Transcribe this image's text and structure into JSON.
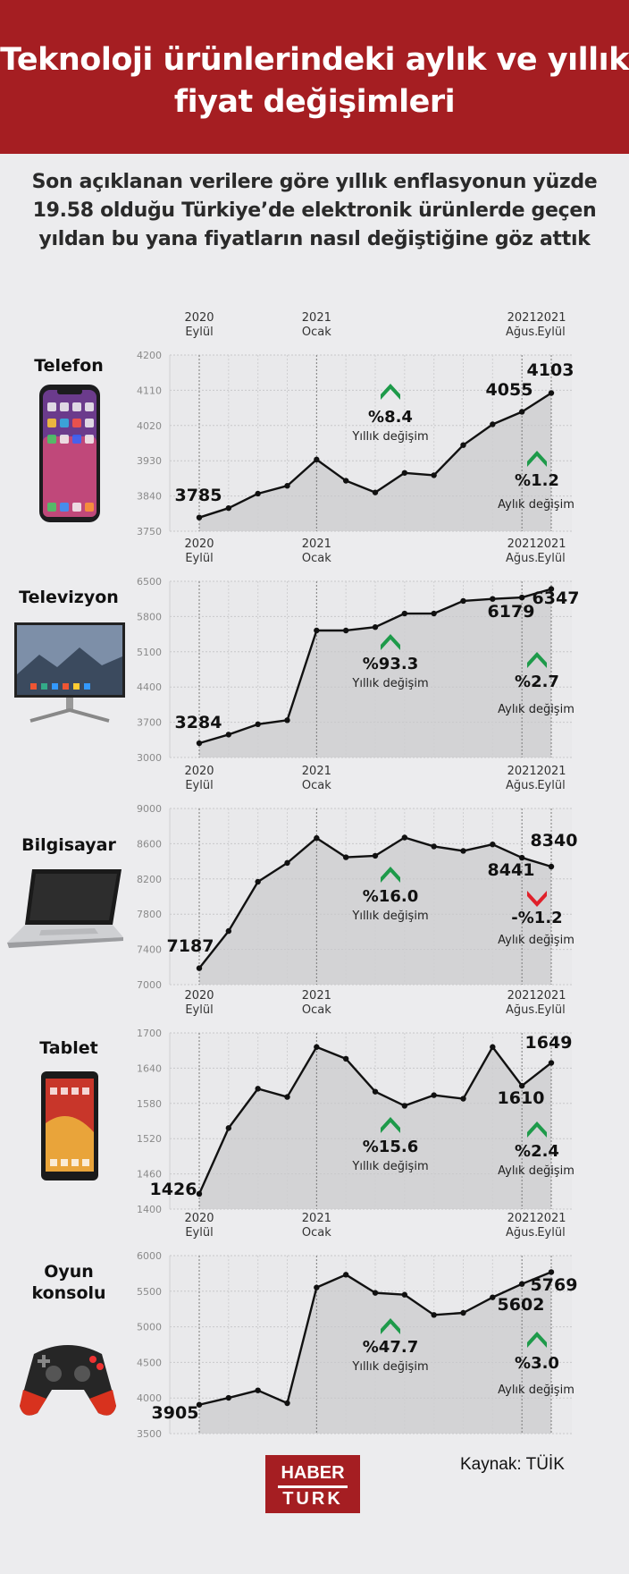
{
  "header": {
    "title": "Teknoloji ürünlerindeki aylık ve yıllık fiyat değişimleri"
  },
  "subtitle": "Son açıklanan verilere göre yıllık enflasyonun yüzde 19.58 olduğu Türkiye’de elektronik ürünlerde geçen yıldan bu yana fiyatların nasıl değiştiğine göz attık",
  "footer": {
    "logo_line1": "HABER",
    "logo_line2": "TURK",
    "source": "Kaynak: TÜİK"
  },
  "colors": {
    "header_red": "#a51e22",
    "up_green": "#1e9a4a",
    "down_red": "#e0202a",
    "area_fill": "#d3d3d5",
    "background": "#ececee"
  },
  "chart_data": [
    {
      "type": "area",
      "category": "Telefon",
      "x_tick_labels": [
        {
          "year": "2020",
          "month": "Eylül"
        },
        {
          "year": "2021",
          "month": "Ocak"
        },
        {
          "year": "2021",
          "month": "Ağus."
        },
        {
          "year": "2021",
          "month": "Eylül"
        }
      ],
      "x": [
        "2020-09",
        "2020-10",
        "2020-11",
        "2020-12",
        "2021-01",
        "2021-02",
        "2021-03",
        "2021-04",
        "2021-05",
        "2021-06",
        "2021-07",
        "2021-08",
        "2021-09"
      ],
      "values": [
        3785,
        3809,
        3846,
        3866,
        3933,
        3879,
        3849,
        3899,
        3893,
        3970,
        4023,
        4055,
        4103
      ],
      "data_labels": [
        {
          "index": 0,
          "text": "3785"
        },
        {
          "index": 11,
          "text": "4055"
        },
        {
          "index": 12,
          "text": "4103"
        }
      ],
      "yticks": [
        3750,
        3840,
        3930,
        4020,
        4110,
        4200
      ],
      "ylim": [
        3750,
        4200
      ],
      "grid": true,
      "annual_change": {
        "value": "%8.4",
        "label": "Yıllık değişim",
        "direction": "up"
      },
      "monthly_change": {
        "value": "%1.2",
        "label": "Aylık değişim",
        "direction": "up"
      }
    },
    {
      "type": "area",
      "category": "Televizyon",
      "x_tick_labels": [
        {
          "year": "2020",
          "month": "Eylül"
        },
        {
          "year": "2021",
          "month": "Ocak"
        },
        {
          "year": "2021",
          "month": "Ağus."
        },
        {
          "year": "2021",
          "month": "Eylül"
        }
      ],
      "x": [
        "2020-09",
        "2020-10",
        "2020-11",
        "2020-12",
        "2021-01",
        "2021-02",
        "2021-03",
        "2021-04",
        "2021-05",
        "2021-06",
        "2021-07",
        "2021-08",
        "2021-09"
      ],
      "values": [
        3284,
        3455,
        3660,
        3740,
        5523,
        5523,
        5590,
        5860,
        5860,
        6110,
        6150,
        6179,
        6347
      ],
      "data_labels": [
        {
          "index": 0,
          "text": "3284"
        },
        {
          "index": 11,
          "text": "6179"
        },
        {
          "index": 12,
          "text": "6347"
        }
      ],
      "yticks": [
        3000,
        3700,
        4400,
        5100,
        5800,
        6500
      ],
      "ylim": [
        3000,
        6500
      ],
      "grid": true,
      "annual_change": {
        "value": "%93.3",
        "label": "Yıllık değişim",
        "direction": "up"
      },
      "monthly_change": {
        "value": "%2.7",
        "label": "Aylık değişim",
        "direction": "up"
      }
    },
    {
      "type": "area",
      "category": "Bilgisayar",
      "x_tick_labels": [
        {
          "year": "2020",
          "month": "Eylül"
        },
        {
          "year": "2021",
          "month": "Ocak"
        },
        {
          "year": "2021",
          "month": "Ağus."
        },
        {
          "year": "2021",
          "month": "Eylül"
        }
      ],
      "x": [
        "2020-09",
        "2020-10",
        "2020-11",
        "2020-12",
        "2021-01",
        "2021-02",
        "2021-03",
        "2021-04",
        "2021-05",
        "2021-06",
        "2021-07",
        "2021-08",
        "2021-09"
      ],
      "values": [
        7187,
        7608,
        8168,
        8382,
        8664,
        8446,
        8463,
        8670,
        8569,
        8518,
        8592,
        8441,
        8340
      ],
      "data_labels": [
        {
          "index": 0,
          "text": "7187"
        },
        {
          "index": 11,
          "text": "8441"
        },
        {
          "index": 12,
          "text": "8340"
        }
      ],
      "yticks": [
        7000,
        7400,
        7800,
        8200,
        8600,
        9000
      ],
      "ylim": [
        7000,
        9000
      ],
      "grid": true,
      "annual_change": {
        "value": "%16.0",
        "label": "Yıllık değişim",
        "direction": "up"
      },
      "monthly_change": {
        "value": "-%1.2",
        "label": "Aylık değişim",
        "direction": "down"
      }
    },
    {
      "type": "area",
      "category": "Tablet",
      "x_tick_labels": [
        {
          "year": "2020",
          "month": "Eylül"
        },
        {
          "year": "2021",
          "month": "Ocak"
        },
        {
          "year": "2021",
          "month": "Ağus."
        },
        {
          "year": "2021",
          "month": "Eylül"
        }
      ],
      "x": [
        "2020-09",
        "2020-10",
        "2020-11",
        "2020-12",
        "2021-01",
        "2021-02",
        "2021-03",
        "2021-04",
        "2021-05",
        "2021-06",
        "2021-07",
        "2021-08",
        "2021-09"
      ],
      "values": [
        1426,
        1538,
        1605,
        1591,
        1676,
        1656,
        1600,
        1576,
        1594,
        1588,
        1676,
        1610,
        1649
      ],
      "data_labels": [
        {
          "index": 0,
          "text": "1426"
        },
        {
          "index": 11,
          "text": "1610"
        },
        {
          "index": 12,
          "text": "1649"
        }
      ],
      "yticks": [
        1400,
        1460,
        1520,
        1580,
        1640,
        1700
      ],
      "ylim": [
        1400,
        1700
      ],
      "grid": true,
      "annual_change": {
        "value": "%15.6",
        "label": "Yıllık değişim",
        "direction": "up"
      },
      "monthly_change": {
        "value": "%2.4",
        "label": "Aylık değişim",
        "direction": "up"
      }
    },
    {
      "type": "area",
      "category": "Oyun konsolu",
      "x_tick_labels": [
        {
          "year": "2020",
          "month": "Eylül"
        },
        {
          "year": "2021",
          "month": "Ocak"
        },
        {
          "year": "2021",
          "month": "Ağus."
        },
        {
          "year": "2021",
          "month": "Eylül"
        }
      ],
      "x": [
        "2020-09",
        "2020-10",
        "2020-11",
        "2020-12",
        "2021-01",
        "2021-02",
        "2021-03",
        "2021-04",
        "2021-05",
        "2021-06",
        "2021-07",
        "2021-08",
        "2021-09"
      ],
      "values": [
        3905,
        4002,
        4107,
        3927,
        5552,
        5732,
        5477,
        5451,
        5167,
        5196,
        5414,
        5602,
        5769
      ],
      "data_labels": [
        {
          "index": 0,
          "text": "3905"
        },
        {
          "index": 11,
          "text": "5602"
        },
        {
          "index": 12,
          "text": "5769"
        }
      ],
      "yticks": [
        3500,
        4000,
        4500,
        5000,
        5500,
        6000
      ],
      "ylim": [
        3500,
        6000
      ],
      "grid": true,
      "annual_change": {
        "value": "%47.7",
        "label": "Yıllık değişim",
        "direction": "up"
      },
      "monthly_change": {
        "value": "%3.0",
        "label": "Aylık değişim",
        "direction": "up"
      }
    }
  ]
}
